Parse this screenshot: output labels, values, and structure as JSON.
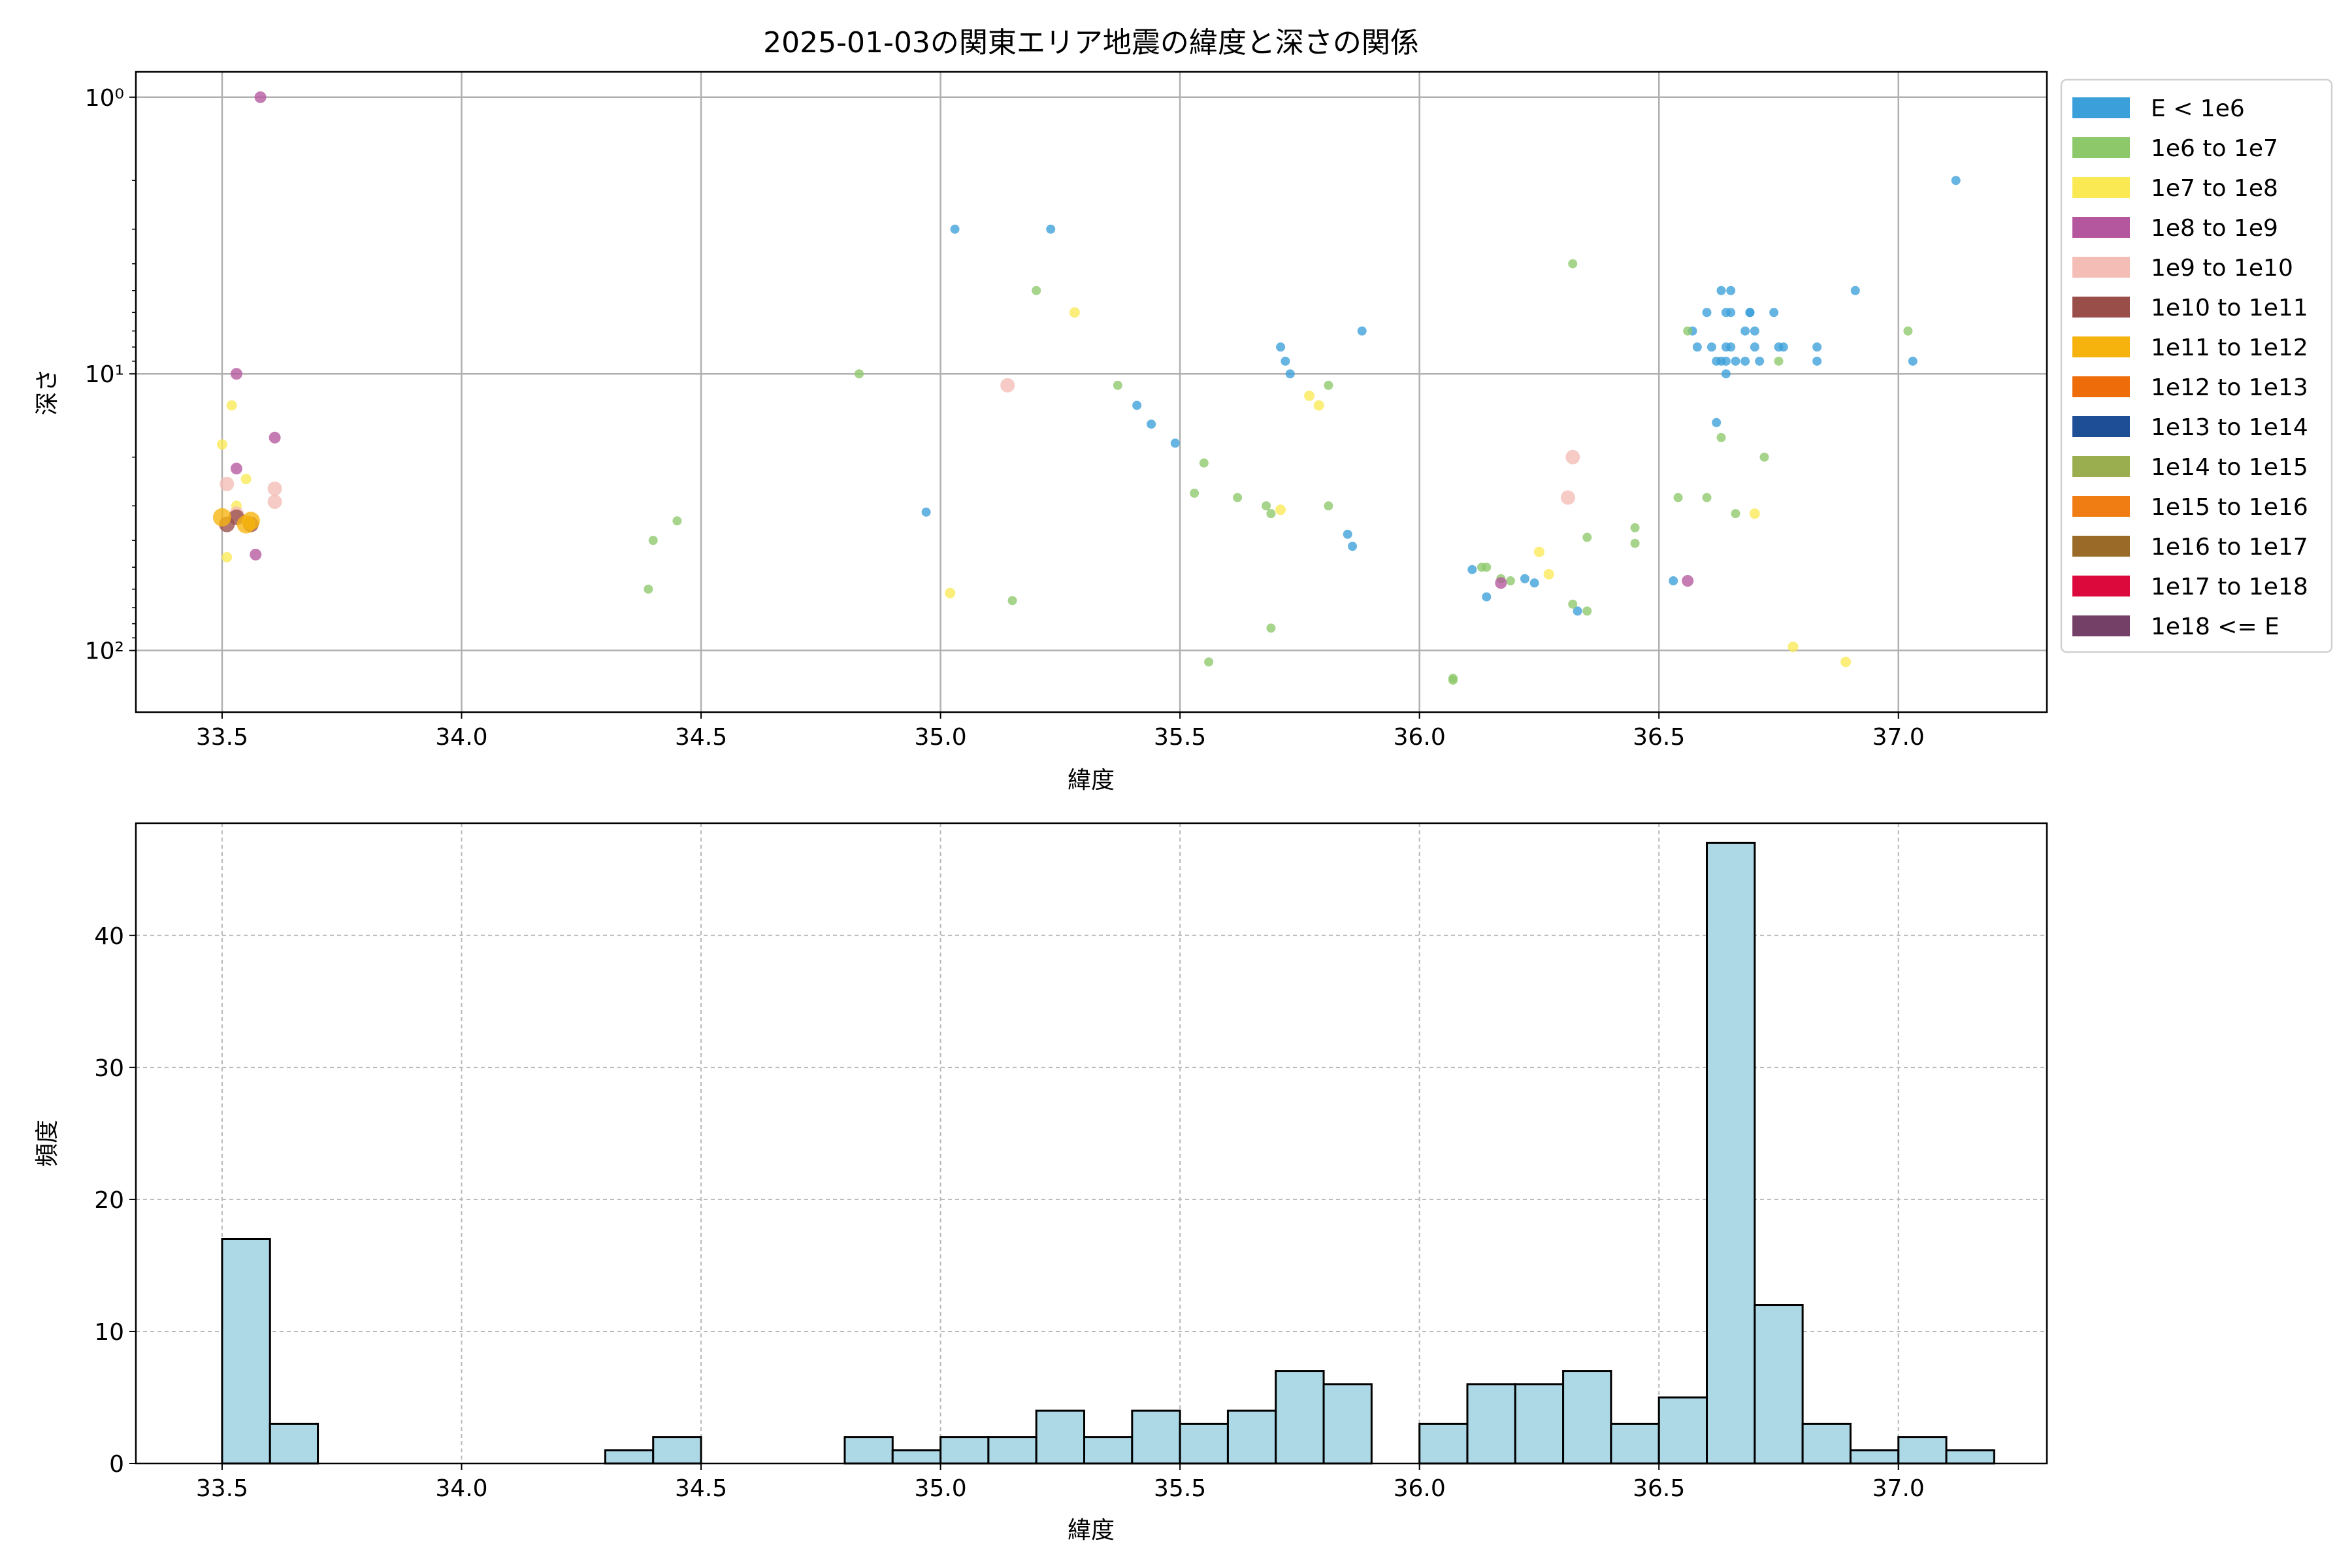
{
  "figure": {
    "title": "2025-01-03の関東エリア地震の緯度と深さの関係"
  },
  "chart_data": [
    {
      "type": "scatter",
      "title": "2025-01-03の関東エリア地震の緯度と深さの関係",
      "xlabel": "緯度",
      "ylabel": "深さ",
      "xlim": [
        33.32,
        37.31
      ],
      "ylim": [
        167,
        0.81
      ],
      "y_scale": "log",
      "y_inverted": true,
      "grid": true,
      "legend_position": "outside-right",
      "x_ticks": [
        33.5,
        34.0,
        34.5,
        35.0,
        35.5,
        36.0,
        36.5,
        37.0
      ],
      "x_tick_labels": [
        "33.5",
        "34.0",
        "34.5",
        "35.0",
        "35.5",
        "36.0",
        "36.5",
        "37.0"
      ],
      "y_ticks": [
        1,
        10,
        100
      ],
      "y_tick_labels": [
        "10⁰",
        "10¹",
        "10²"
      ],
      "legend": [
        {
          "label": "E < 1e6",
          "color": "#3b9fd9"
        },
        {
          "label": "1e6 to 1e7",
          "color": "#8dc86a"
        },
        {
          "label": "1e7 to 1e8",
          "color": "#fbe954"
        },
        {
          "label": "1e8 to 1e9",
          "color": "#b5579e"
        },
        {
          "label": "1e9 to 1e10",
          "color": "#f4bdb6"
        },
        {
          "label": "1e10 to 1e11",
          "color": "#9a4e4a"
        },
        {
          "label": "1e11 to 1e12",
          "color": "#f6b30d"
        },
        {
          "label": "1e12 to 1e13",
          "color": "#ef6c0a"
        },
        {
          "label": "1e13 to 1e14",
          "color": "#1d4e96"
        },
        {
          "label": "1e14 to 1e15",
          "color": "#9aae50"
        },
        {
          "label": "1e15 to 1e16",
          "color": "#f07d14"
        },
        {
          "label": "1e16 to 1e17",
          "color": "#9a6b28"
        },
        {
          "label": "1e17 to 1e18",
          "color": "#dc0a3c"
        },
        {
          "label": "1e18 <= E",
          "color": "#754068"
        }
      ],
      "series": [
        {
          "class": 0,
          "points": [
            [
              34.97,
              31.6
            ],
            [
              35.03,
              3.0
            ],
            [
              35.23,
              3.0
            ],
            [
              35.41,
              13.0
            ],
            [
              35.44,
              15.2
            ],
            [
              35.49,
              17.8
            ],
            [
              35.71,
              8.0
            ],
            [
              35.72,
              9.0
            ],
            [
              35.73,
              10.0
            ],
            [
              35.85,
              38.0
            ],
            [
              35.86,
              42.0
            ],
            [
              35.88,
              7.0
            ],
            [
              36.11,
              51.0
            ],
            [
              36.14,
              64.0
            ],
            [
              36.22,
              55.0
            ],
            [
              36.24,
              57.0
            ],
            [
              36.33,
              72.0
            ],
            [
              36.53,
              56.0
            ],
            [
              36.57,
              7.0
            ],
            [
              36.58,
              8.0
            ],
            [
              36.6,
              6.0
            ],
            [
              36.61,
              8.0
            ],
            [
              36.62,
              15.0
            ],
            [
              36.62,
              9.0
            ],
            [
              36.63,
              5.0
            ],
            [
              36.63,
              9.0
            ],
            [
              36.64,
              6.0
            ],
            [
              36.64,
              8.0
            ],
            [
              36.64,
              10.0
            ],
            [
              36.64,
              9.0
            ],
            [
              36.65,
              5.0
            ],
            [
              36.65,
              6.0
            ],
            [
              36.65,
              8.0
            ],
            [
              36.66,
              9.0
            ],
            [
              36.68,
              7.0
            ],
            [
              36.68,
              9.0
            ],
            [
              36.69,
              6.0
            ],
            [
              36.69,
              6.0
            ],
            [
              36.7,
              7.0
            ],
            [
              36.7,
              8.0
            ],
            [
              36.71,
              9.0
            ],
            [
              36.74,
              6.0
            ],
            [
              36.75,
              8.0
            ],
            [
              36.76,
              8.0
            ],
            [
              36.83,
              8.0
            ],
            [
              36.83,
              9.0
            ],
            [
              36.91,
              5.0
            ],
            [
              37.03,
              9.0
            ],
            [
              37.12,
              2.0
            ]
          ]
        },
        {
          "class": 1,
          "points": [
            [
              34.39,
              60.0
            ],
            [
              34.4,
              40.0
            ],
            [
              34.45,
              34.0
            ],
            [
              34.83,
              10.0
            ],
            [
              35.15,
              66.0
            ],
            [
              35.2,
              5.0
            ],
            [
              35.37,
              11.0
            ],
            [
              35.53,
              27.0
            ],
            [
              35.55,
              21.0
            ],
            [
              35.56,
              110.0
            ],
            [
              35.62,
              28.0
            ],
            [
              35.68,
              30.0
            ],
            [
              35.69,
              32.0
            ],
            [
              35.69,
              83.0
            ],
            [
              35.81,
              11.0
            ],
            [
              35.81,
              30.0
            ],
            [
              36.07,
              126.0
            ],
            [
              36.07,
              128.0
            ],
            [
              36.13,
              50.0
            ],
            [
              36.14,
              50.0
            ],
            [
              36.17,
              55.0
            ],
            [
              36.19,
              56.0
            ],
            [
              36.32,
              4.0
            ],
            [
              36.32,
              68.0
            ],
            [
              36.35,
              39.0
            ],
            [
              36.35,
              72.0
            ],
            [
              36.45,
              36.0
            ],
            [
              36.45,
              41.0
            ],
            [
              36.54,
              28.0
            ],
            [
              36.56,
              7.0
            ],
            [
              36.6,
              28.0
            ],
            [
              36.63,
              17.0
            ],
            [
              36.66,
              32.0
            ],
            [
              36.72,
              20.0
            ],
            [
              36.75,
              9.0
            ],
            [
              37.02,
              7.0
            ]
          ]
        },
        {
          "class": 2,
          "points": [
            [
              33.5,
              18.0
            ],
            [
              33.51,
              46.0
            ],
            [
              33.52,
              13.0
            ],
            [
              33.53,
              30.0
            ],
            [
              33.55,
              24.0
            ],
            [
              35.02,
              62.0
            ],
            [
              35.28,
              6.0
            ],
            [
              35.71,
              31.0
            ],
            [
              35.77,
              12.0
            ],
            [
              35.79,
              13.0
            ],
            [
              36.25,
              44.0
            ],
            [
              36.27,
              53.0
            ],
            [
              36.7,
              32.0
            ],
            [
              36.78,
              97.0
            ],
            [
              36.89,
              110.0
            ]
          ]
        },
        {
          "class": 3,
          "points": [
            [
              33.53,
              10.0
            ],
            [
              33.53,
              22.0
            ],
            [
              33.57,
              45.0
            ],
            [
              33.58,
              1.0
            ],
            [
              33.61,
              17.0
            ],
            [
              36.17,
              57.0
            ],
            [
              36.56,
              56.0
            ]
          ]
        },
        {
          "class": 4,
          "points": [
            [
              33.51,
              25.0
            ],
            [
              33.53,
              32.0
            ],
            [
              33.61,
              26.0
            ],
            [
              33.61,
              29.0
            ],
            [
              35.14,
              11.0
            ],
            [
              36.31,
              28.0
            ],
            [
              36.32,
              20.0
            ]
          ]
        },
        {
          "class": 5,
          "points": [
            [
              33.51,
              35.0
            ],
            [
              33.53,
              33.0
            ],
            [
              33.56,
              35.0
            ]
          ]
        },
        {
          "class": 6,
          "points": [
            [
              33.5,
              33.0
            ],
            [
              33.55,
              35.0
            ],
            [
              33.56,
              34.0
            ]
          ]
        }
      ]
    },
    {
      "type": "bar",
      "xlabel": "緯度",
      "ylabel": "頻度",
      "xlim": [
        33.32,
        37.31
      ],
      "ylim": [
        0,
        48.5
      ],
      "grid": true,
      "grid_style": "dashed",
      "bar_color": "#add8e6",
      "bar_edge_color": "#000000",
      "x_ticks": [
        33.5,
        34.0,
        34.5,
        35.0,
        35.5,
        36.0,
        36.5,
        37.0
      ],
      "x_tick_labels": [
        "33.5",
        "34.0",
        "34.5",
        "35.0",
        "35.5",
        "36.0",
        "36.5",
        "37.0"
      ],
      "y_ticks": [
        0,
        10,
        20,
        30,
        40
      ],
      "y_tick_labels": [
        "0",
        "10",
        "20",
        "30",
        "40"
      ],
      "bin_edges": [
        33.5,
        33.6,
        33.7,
        33.8,
        33.9,
        34.0,
        34.1,
        34.2,
        34.3,
        34.4,
        34.5,
        34.6,
        34.7,
        34.8,
        34.9,
        35.0,
        35.1,
        35.2,
        35.3,
        35.4,
        35.5,
        35.6,
        35.7,
        35.8,
        35.9,
        36.0,
        36.1,
        36.2,
        36.3,
        36.4,
        36.5,
        36.6,
        36.7,
        36.8,
        36.9,
        37.0,
        37.1,
        37.2
      ],
      "counts": [
        17,
        3,
        0,
        0,
        0,
        0,
        0,
        0,
        1,
        2,
        0,
        0,
        0,
        2,
        1,
        2,
        2,
        4,
        2,
        4,
        3,
        4,
        7,
        6,
        0,
        3,
        6,
        6,
        7,
        3,
        5,
        47,
        12,
        3,
        1,
        2,
        1
      ]
    }
  ]
}
